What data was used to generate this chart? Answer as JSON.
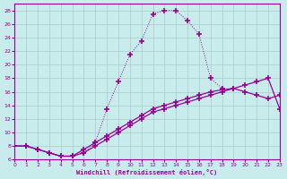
{
  "xlabel": "Windchill (Refroidissement éolien,°C)",
  "background_color": "#c8ecec",
  "grid_color": "#aacccc",
  "line_color": "#990099",
  "xlim": [
    0,
    23
  ],
  "ylim": [
    6,
    29
  ],
  "yticks": [
    6,
    8,
    10,
    12,
    14,
    16,
    18,
    20,
    22,
    24,
    26,
    28
  ],
  "xticks": [
    0,
    1,
    2,
    3,
    4,
    5,
    6,
    7,
    8,
    9,
    10,
    11,
    12,
    13,
    14,
    15,
    16,
    17,
    18,
    19,
    20,
    21,
    22,
    23
  ],
  "line1_x": [
    0,
    1,
    2,
    3,
    4,
    5,
    6,
    7,
    8,
    9,
    10,
    11,
    12,
    13,
    14,
    15,
    16,
    17,
    18,
    19,
    20,
    21,
    22,
    23
  ],
  "line1_y": [
    8.0,
    8.0,
    7.5,
    7.0,
    6.5,
    6.5,
    7.0,
    8.0,
    9.0,
    10.0,
    11.0,
    12.0,
    13.0,
    13.5,
    14.0,
    14.5,
    15.0,
    15.5,
    16.0,
    16.5,
    17.0,
    17.5,
    18.0,
    13.5
  ],
  "line1_style": "solid",
  "line2_x": [
    0,
    1,
    2,
    3,
    4,
    5,
    6,
    7,
    8,
    9,
    10,
    11,
    12,
    13,
    14,
    15,
    16,
    17,
    18,
    19,
    20,
    21,
    22,
    23
  ],
  "line2_y": [
    8.0,
    8.0,
    7.5,
    7.0,
    6.5,
    6.5,
    7.5,
    8.5,
    9.5,
    10.5,
    11.5,
    12.5,
    13.5,
    14.0,
    14.5,
    15.0,
    15.5,
    16.0,
    16.3,
    16.5,
    16.0,
    15.5,
    15.0,
    15.5
  ],
  "line2_style": "solid",
  "line3_x": [
    0,
    1,
    2,
    3,
    4,
    5,
    6,
    7,
    8,
    9,
    10,
    11,
    12,
    13,
    14,
    15,
    16,
    17,
    18
  ],
  "line3_y": [
    8.0,
    8.0,
    7.5,
    7.0,
    6.5,
    6.5,
    7.0,
    8.5,
    13.5,
    17.5,
    21.5,
    23.5,
    27.5,
    28.0,
    28.0,
    26.5,
    24.5,
    18.0,
    16.5
  ],
  "line3_style": "dotted"
}
